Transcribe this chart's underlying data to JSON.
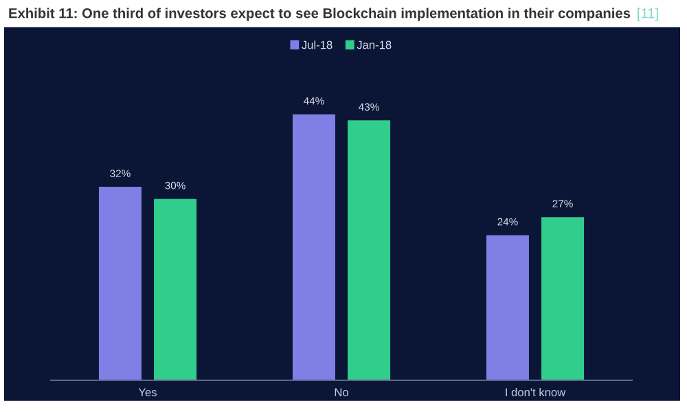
{
  "chart_data": {
    "type": "bar",
    "title": "Exhibit 11: One third of investors expect to see Blockchain implementation in their companies",
    "annotations": [
      "[11]"
    ],
    "categories": [
      "Yes",
      "No",
      "I don't know"
    ],
    "series": [
      {
        "name": "Jul-18",
        "color": "#7f7fe6",
        "values": [
          32,
          44,
          24
        ],
        "value_labels": [
          "32%",
          "44%",
          "24%"
        ]
      },
      {
        "name": "Jan-18",
        "color": "#31cd8c",
        "values": [
          30,
          43,
          27
        ],
        "value_labels": [
          "30%",
          "43%",
          "27%"
        ]
      }
    ],
    "legend": "top",
    "grid": false,
    "tick_labels": "x"
  }
}
